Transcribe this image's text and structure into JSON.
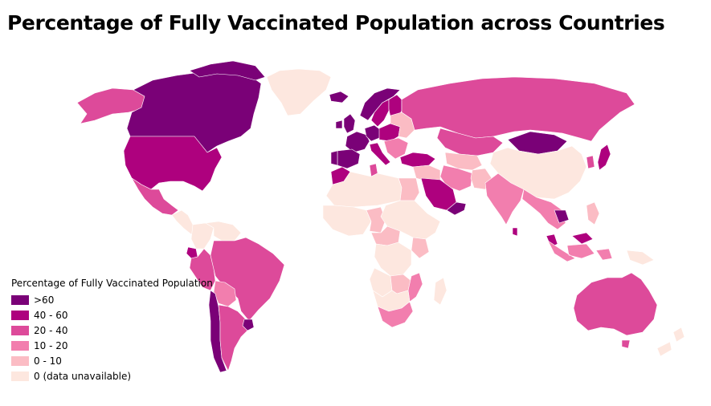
{
  "title": "Percentage of Fully Vaccinated Population across Countries",
  "legend": {
    "title": "Percentage of Fully Vaccinated Population",
    "classes": [
      {
        "label": ">60",
        "color": "#7a0177"
      },
      {
        "label": "40 - 60",
        "color": "#ae017e"
      },
      {
        "label": "20 - 40",
        "color": "#dd4a9a"
      },
      {
        "label": "10 - 20",
        "color": "#f27eae"
      },
      {
        "label": "0 - 10",
        "color": "#fbbcc4"
      },
      {
        "label": "0 (data unavailable)",
        "color": "#fde7df"
      }
    ]
  },
  "countries": [
    {
      "name": "Canada",
      "class": 0
    },
    {
      "name": "United States",
      "class": 1
    },
    {
      "name": "Alaska",
      "class": 2
    },
    {
      "name": "Greenland",
      "class": 5
    },
    {
      "name": "Mexico",
      "class": 2
    },
    {
      "name": "Central America",
      "class": 5
    },
    {
      "name": "Colombia",
      "class": 5
    },
    {
      "name": "Venezuela",
      "class": 5
    },
    {
      "name": "Ecuador",
      "class": 1
    },
    {
      "name": "Peru",
      "class": 2
    },
    {
      "name": "Brazil",
      "class": 2
    },
    {
      "name": "Bolivia",
      "class": 3
    },
    {
      "name": "Chile",
      "class": 0
    },
    {
      "name": "Argentina",
      "class": 2
    },
    {
      "name": "Uruguay",
      "class": 0
    },
    {
      "name": "Iceland",
      "class": 0
    },
    {
      "name": "Norway",
      "class": 0
    },
    {
      "name": "Sweden",
      "class": 1
    },
    {
      "name": "Finland",
      "class": 1
    },
    {
      "name": "United Kingdom",
      "class": 0
    },
    {
      "name": "Ireland",
      "class": 0
    },
    {
      "name": "France",
      "class": 0
    },
    {
      "name": "Germany",
      "class": 0
    },
    {
      "name": "Central Europe",
      "class": 1
    },
    {
      "name": "Eastern Europe",
      "class": 4
    },
    {
      "name": "Spain",
      "class": 0
    },
    {
      "name": "Portugal",
      "class": 0
    },
    {
      "name": "Italy",
      "class": 1
    },
    {
      "name": "Balkans",
      "class": 3
    },
    {
      "name": "Turkey",
      "class": 1
    },
    {
      "name": "Russia",
      "class": 2
    },
    {
      "name": "Kazakhstan",
      "class": 2
    },
    {
      "name": "Mongolia",
      "class": 0
    },
    {
      "name": "China",
      "class": 5
    },
    {
      "name": "Japan",
      "class": 1
    },
    {
      "name": "Korea",
      "class": 2
    },
    {
      "name": "Central Asia",
      "class": 4
    },
    {
      "name": "Iran",
      "class": 3
    },
    {
      "name": "Pakistan",
      "class": 4
    },
    {
      "name": "India",
      "class": 3
    },
    {
      "name": "Sri Lanka",
      "class": 1
    },
    {
      "name": "Saudi Arabia",
      "class": 1
    },
    {
      "name": "Gulf States",
      "class": 0
    },
    {
      "name": "Middle East",
      "class": 4
    },
    {
      "name": "Southeast Asia",
      "class": 3
    },
    {
      "name": "Cambodia",
      "class": 0
    },
    {
      "name": "Malaysia",
      "class": 1
    },
    {
      "name": "Indonesia",
      "class": 3
    },
    {
      "name": "Philippines",
      "class": 4
    },
    {
      "name": "Papua New Guinea",
      "class": 5
    },
    {
      "name": "Australia",
      "class": 2
    },
    {
      "name": "Tasmania",
      "class": 2
    },
    {
      "name": "New Zealand",
      "class": 5
    },
    {
      "name": "Morocco",
      "class": 1
    },
    {
      "name": "Tunisia",
      "class": 2
    },
    {
      "name": "North Africa",
      "class": 5
    },
    {
      "name": "Egypt",
      "class": 4
    },
    {
      "name": "West Africa",
      "class": 5
    },
    {
      "name": "Chad",
      "class": 4
    },
    {
      "name": "East Africa",
      "class": 5
    },
    {
      "name": "Kenya",
      "class": 4
    },
    {
      "name": "Central Africa",
      "class": 4
    },
    {
      "name": "DR Congo",
      "class": 5
    },
    {
      "name": "Angola",
      "class": 5
    },
    {
      "name": "Zambia",
      "class": 4
    },
    {
      "name": "Mozambique",
      "class": 3
    },
    {
      "name": "Southern Africa",
      "class": 5
    },
    {
      "name": "South Africa",
      "class": 3
    },
    {
      "name": "Madagascar",
      "class": 5
    }
  ]
}
